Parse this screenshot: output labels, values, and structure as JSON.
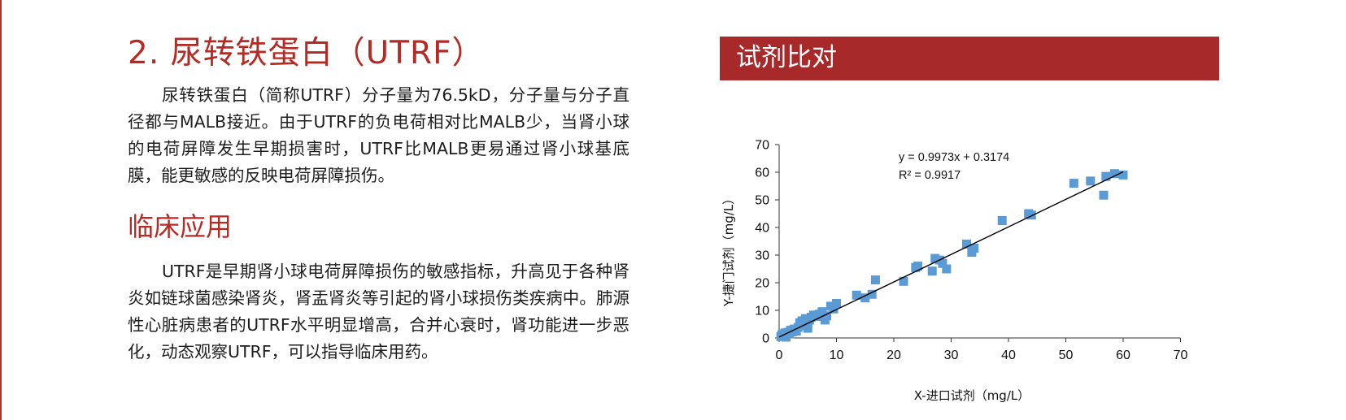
{
  "section": {
    "title": "2. 尿转铁蛋白（UTRF）",
    "intro": "尿转铁蛋白（简称UTRF）分子量为76.5kD，分子量与分子直径都与MALB接近。由于UTRF的负电荷相对比MALB少，当肾小球的电荷屏障发生早期损害时，UTRF比MALB更易通过肾小球基底膜，能更敏感的反映电荷屏障损伤。",
    "subtitle": "临床应用",
    "clinical": "UTRF是早期肾小球电荷屏障损伤的敏感指标，升高见于各种肾炎如链球菌感染肾炎，肾盂肾炎等引起的肾小球损伤类疾病中。肺源性心脏病患者的UTRF水平明显增高，合并心衰时，肾功能进一步恶化，动态观察UTRF，可以指导临床用药。"
  },
  "panel": {
    "title": "试剂比对"
  },
  "colors": {
    "accent": "#b52a25",
    "banner": "#a8292a",
    "marker": "#5b9bd5"
  },
  "chart_data": {
    "type": "scatter",
    "xlabel": "X-进口试剂（mg/L）",
    "ylabel": "Y-捷门试剂（mg/L）",
    "xlim": [
      0,
      70
    ],
    "ylim": [
      0,
      70
    ],
    "xticks": [
      "0",
      "10",
      "20",
      "30",
      "40",
      "50",
      "60",
      "70"
    ],
    "yticks": [
      "0",
      "10",
      "20",
      "30",
      "40",
      "50",
      "60",
      "70"
    ],
    "grid": false,
    "legend": "none",
    "annotation": [
      "y = 0.9973x + 0.3174",
      "R² = 0.9917"
    ],
    "trendline": {
      "slope": 0.9973,
      "intercept": 0.3174,
      "x_range": [
        0,
        60
      ]
    },
    "points": [
      [
        0.3,
        0.5
      ],
      [
        0.5,
        1.2
      ],
      [
        0.8,
        0.8
      ],
      [
        1.0,
        1.8
      ],
      [
        1.2,
        0.3
      ],
      [
        1.5,
        2.0
      ],
      [
        1.8,
        1.5
      ],
      [
        2.0,
        2.8
      ],
      [
        2.3,
        2.2
      ],
      [
        2.6,
        3.2
      ],
      [
        3.0,
        2.5
      ],
      [
        3.3,
        3.8
      ],
      [
        3.6,
        5.5
      ],
      [
        4.0,
        6.2
      ],
      [
        4.3,
        4.5
      ],
      [
        4.6,
        7.0
      ],
      [
        5.0,
        3.5
      ],
      [
        5.0,
        5.0
      ],
      [
        5.3,
        6.5
      ],
      [
        5.6,
        7.5
      ],
      [
        6.0,
        8.3
      ],
      [
        6.5,
        7.8
      ],
      [
        7.0,
        8.6
      ],
      [
        7.5,
        9.5
      ],
      [
        8.0,
        6.5
      ],
      [
        8.3,
        8.0
      ],
      [
        9.0,
        11.5
      ],
      [
        9.5,
        10.5
      ],
      [
        10.0,
        12.5
      ],
      [
        13.5,
        15.5
      ],
      [
        15.0,
        14.5
      ],
      [
        16.2,
        15.8
      ],
      [
        16.8,
        21.0
      ],
      [
        21.7,
        20.5
      ],
      [
        23.8,
        25.5
      ],
      [
        24.2,
        26.0
      ],
      [
        26.7,
        24.2
      ],
      [
        27.2,
        28.8
      ],
      [
        28.0,
        28.2
      ],
      [
        28.5,
        27.0
      ],
      [
        29.2,
        25.0
      ],
      [
        32.7,
        34.0
      ],
      [
        33.6,
        31.0
      ],
      [
        34.0,
        32.5
      ],
      [
        38.9,
        42.5
      ],
      [
        43.5,
        45.0
      ],
      [
        44.0,
        44.5
      ],
      [
        51.4,
        56.0
      ],
      [
        54.3,
        56.8
      ],
      [
        56.6,
        51.7
      ],
      [
        57.0,
        58.5
      ],
      [
        58.5,
        59.5
      ],
      [
        60.0,
        59.0
      ]
    ]
  }
}
